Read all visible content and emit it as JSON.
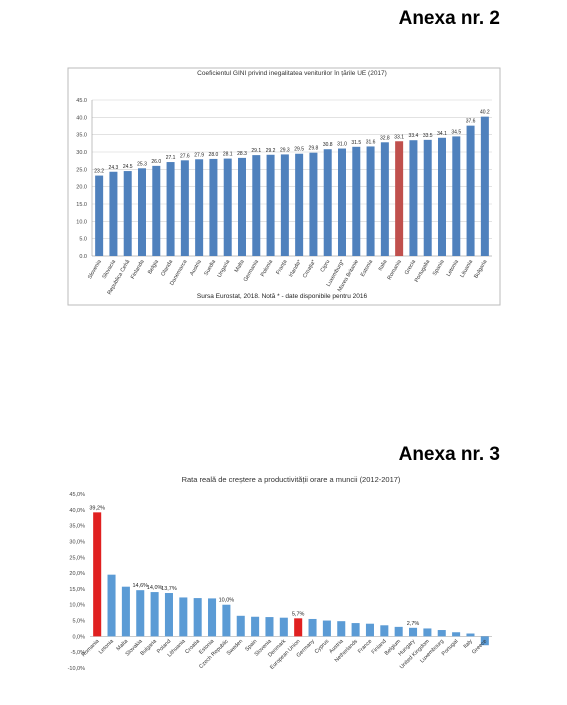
{
  "headings": [
    "Anexa nr. 2",
    "Anexa nr. 3"
  ],
  "chart_data": [
    {
      "type": "bar",
      "title": "Coeficientul GINI privind inegalitatea veniturilor în țările UE (2017)",
      "note": "Sursa  Eurostat, 2018. Notă * - date disponibile pentru 2016",
      "categories": [
        "Slovenia",
        "Slovacia",
        "Republica Cehă",
        "Finlanda",
        "Belgia",
        "Olanda",
        "Danemarca",
        "Austria",
        "Suedia",
        "Ungaria",
        "Malta",
        "Germania",
        "Polonia",
        "Franța",
        "Irlanda*",
        "Croația*",
        "Cipru",
        "Luxemburg*",
        "Marea Britanie",
        "Estonia",
        "Italia",
        "Romania",
        "Grecia",
        "Portugalia",
        "Spania",
        "Letonia",
        "Lituania",
        "Bulgaria"
      ],
      "values": [
        23.2,
        24.3,
        24.5,
        25.3,
        26.0,
        27.1,
        27.6,
        27.9,
        28.0,
        28.1,
        28.3,
        29.1,
        29.2,
        29.3,
        29.5,
        29.8,
        30.8,
        31.0,
        31.5,
        31.6,
        32.8,
        33.1,
        33.4,
        33.5,
        34.1,
        34.5,
        37.6,
        40.2
      ],
      "value_labels": [
        "23.2",
        "24.3",
        "24.5",
        "25.3",
        "26.0",
        "27.1",
        "27.6",
        "27.9",
        "28.0",
        "28.1",
        "28.3",
        "29.1",
        "29.2",
        "29.3",
        "29.5",
        "29.8",
        "30.8",
        "31.0",
        "31.5",
        "31.6",
        "32.8",
        "33.1",
        "33.4",
        "33.5",
        "34.1",
        "34.5",
        "37.6",
        "40.2"
      ],
      "colors": [
        "#4f81bd",
        "#4f81bd",
        "#4f81bd",
        "#4f81bd",
        "#4f81bd",
        "#4f81bd",
        "#4f81bd",
        "#4f81bd",
        "#4f81bd",
        "#4f81bd",
        "#4f81bd",
        "#4f81bd",
        "#4f81bd",
        "#4f81bd",
        "#4f81bd",
        "#4f81bd",
        "#4f81bd",
        "#4f81bd",
        "#4f81bd",
        "#4f81bd",
        "#4f81bd",
        "#c0504d",
        "#4f81bd",
        "#4f81bd",
        "#4f81bd",
        "#4f81bd",
        "#4f81bd",
        "#4f81bd"
      ],
      "ylim": [
        0,
        45
      ],
      "yticks": [
        {
          "value": 0,
          "label": "0.0"
        },
        {
          "value": 5,
          "label": "5.0"
        },
        {
          "value": 10,
          "label": "10.0"
        },
        {
          "value": 15,
          "label": "15.0"
        },
        {
          "value": 20,
          "label": "20.0"
        },
        {
          "value": 25,
          "label": "25.0"
        },
        {
          "value": 30,
          "label": "30.0"
        },
        {
          "value": 35,
          "label": "35.0"
        },
        {
          "value": 40,
          "label": "40.0"
        },
        {
          "value": 45,
          "label": "45.0"
        }
      ],
      "grid": true
    },
    {
      "type": "bar",
      "title": "Rata reală de creștere a productivității orare a muncii (2012-2017)",
      "categories": [
        "Romania",
        "Letonia",
        "Malta",
        "Slovakia",
        "Bulgaria",
        "Poland",
        "Lithuania",
        "Croatia",
        "Estonia",
        "Czech Republic",
        "Sweden",
        "Spain",
        "Slovenia",
        "Denmark",
        "European Union",
        "Germany",
        "Cyprus",
        "Austria",
        "Netherlands",
        "France",
        "Finland",
        "Belgium",
        "Hungary",
        "United Kingdom",
        "Luxembourg",
        "Portugal",
        "Italy",
        "Greece"
      ],
      "values": [
        39.2,
        19.5,
        15.7,
        14.6,
        14.0,
        13.7,
        12.3,
        12.1,
        12.0,
        10.0,
        6.5,
        6.2,
        6.1,
        5.9,
        5.7,
        5.5,
        5.0,
        4.8,
        4.2,
        4.0,
        3.5,
        3.0,
        2.7,
        2.5,
        2.0,
        1.3,
        0.9,
        -2.8
      ],
      "value_labels": [
        "39,2%",
        null,
        null,
        "14,6%",
        "14,0%",
        "13,7%",
        null,
        null,
        null,
        "10,0%",
        null,
        null,
        null,
        null,
        "5,7%",
        null,
        null,
        null,
        null,
        null,
        null,
        null,
        "2,7%",
        null,
        null,
        null,
        null,
        null
      ],
      "colors": [
        "#e02020",
        "#5b9bd5",
        "#5b9bd5",
        "#5b9bd5",
        "#5b9bd5",
        "#5b9bd5",
        "#5b9bd5",
        "#5b9bd5",
        "#5b9bd5",
        "#5b9bd5",
        "#5b9bd5",
        "#5b9bd5",
        "#5b9bd5",
        "#5b9bd5",
        "#e02020",
        "#5b9bd5",
        "#5b9bd5",
        "#5b9bd5",
        "#5b9bd5",
        "#5b9bd5",
        "#5b9bd5",
        "#5b9bd5",
        "#5b9bd5",
        "#5b9bd5",
        "#5b9bd5",
        "#5b9bd5",
        "#5b9bd5",
        "#5b9bd5"
      ],
      "ylim": [
        -10,
        45
      ],
      "yticks": [
        {
          "value": -10,
          "label": "-10,0%"
        },
        {
          "value": -5,
          "label": "-5,0%"
        },
        {
          "value": 0,
          "label": "0,0%"
        },
        {
          "value": 5,
          "label": "5,0%"
        },
        {
          "value": 10,
          "label": "10,0%"
        },
        {
          "value": 15,
          "label": "15,0%"
        },
        {
          "value": 20,
          "label": "20,0%"
        },
        {
          "value": 25,
          "label": "25,0%"
        },
        {
          "value": 30,
          "label": "30,0%"
        },
        {
          "value": 35,
          "label": "35,0%"
        },
        {
          "value": 40,
          "label": "40,0%"
        },
        {
          "value": 45,
          "label": "45,0%"
        }
      ],
      "grid": false
    }
  ]
}
